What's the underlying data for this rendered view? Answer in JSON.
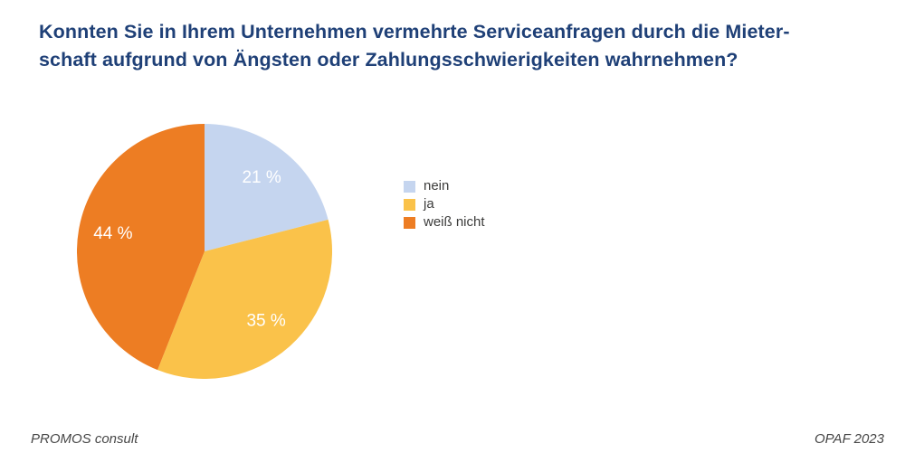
{
  "title": {
    "lines": [
      "Konnten Sie in Ihrem Unternehmen vermehrte Serviceanfragen durch die Mieter-",
      "schaft aufgrund von Ängsten oder Zahlungsschwierigkeiten wahrnehmen?"
    ],
    "full_text": "Konnten Sie in Ihrem Unternehmen vermehrte Serviceanfragen durch die Mieterschaft aufgrund von Ängsten oder Zahlungsschwierigkeiten wahrnehmen?",
    "color": "#1F4077"
  },
  "chart_data": {
    "type": "pie",
    "title": "Konnten Sie in Ihrem Unternehmen vermehrte Serviceanfragen durch die Mieterschaft aufgrund von Ängsten oder Zahlungsschwierigkeiten wahrnehmen?",
    "categories": [
      "nein",
      "ja",
      "weiß nicht"
    ],
    "values": [
      21,
      35,
      44
    ],
    "slice_labels": [
      "21 %",
      "35 %",
      "44 %"
    ],
    "colors": [
      "#C5D5EF",
      "#FAC24A",
      "#ED7D23"
    ],
    "start_angle_deg": 0,
    "direction": "clockwise",
    "label_color": "#FFFFFF",
    "legend_position": "right",
    "grid": false
  },
  "legend": {
    "items": [
      {
        "label": "nein",
        "color": "#C5D5EF"
      },
      {
        "label": "ja",
        "color": "#FAC24A"
      },
      {
        "label": "weiß nicht",
        "color": "#ED7D23"
      }
    ]
  },
  "footer": {
    "left": "PROMOS consult",
    "right": "OPAF 2023"
  }
}
